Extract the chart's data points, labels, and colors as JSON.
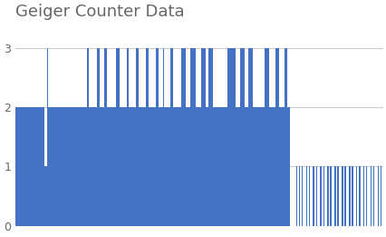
{
  "title": "Geiger Counter Data",
  "title_fontsize": 13,
  "title_color": "#666666",
  "bar_color": "#4472C4",
  "background_color": "#ffffff",
  "ylim": [
    0,
    3.4
  ],
  "yticks": [
    0,
    1,
    2,
    3
  ],
  "grid_color": "#cccccc",
  "pattern": [
    2,
    2,
    2,
    2,
    2,
    2,
    2,
    2,
    2,
    2,
    2,
    2,
    2,
    2,
    2,
    2,
    2,
    2,
    2,
    2,
    1,
    1,
    3,
    2,
    2,
    2,
    2,
    2,
    2,
    2,
    2,
    2,
    2,
    2,
    2,
    2,
    2,
    2,
    2,
    2,
    2,
    2,
    2,
    2,
    2,
    2,
    2,
    2,
    2,
    2,
    3,
    2,
    2,
    2,
    2,
    2,
    2,
    3,
    3,
    2,
    2,
    2,
    3,
    3,
    2,
    2,
    2,
    2,
    2,
    2,
    3,
    3,
    3,
    2,
    2,
    2,
    2,
    2,
    3,
    2,
    2,
    2,
    2,
    2,
    3,
    3,
    2,
    2,
    2,
    2,
    2,
    3,
    3,
    2,
    2,
    2,
    2,
    2,
    3,
    3,
    2,
    2,
    2,
    3,
    2,
    2,
    2,
    2,
    3,
    3,
    2,
    2,
    2,
    2,
    2,
    2,
    3,
    3,
    3,
    2,
    2,
    2,
    3,
    3,
    3,
    3,
    2,
    2,
    2,
    2,
    3,
    3,
    3,
    2,
    2,
    3,
    3,
    3,
    2,
    2,
    2,
    2,
    2,
    2,
    2,
    2,
    2,
    2,
    3,
    3,
    3,
    3,
    3,
    3,
    2,
    2,
    2,
    3,
    3,
    3,
    2,
    2,
    2,
    3,
    3,
    3,
    2,
    2,
    2,
    2,
    2,
    2,
    2,
    2,
    3,
    3,
    3,
    2,
    2,
    2,
    2,
    2,
    3,
    3,
    2,
    2,
    2,
    2,
    3,
    3,
    2,
    2,
    0,
    0,
    0,
    0,
    1,
    0,
    1,
    0,
    1,
    0,
    0,
    1,
    0,
    1,
    0,
    0,
    1,
    0,
    1,
    0,
    0,
    1,
    0,
    1,
    0,
    0,
    1,
    0,
    1,
    0,
    0,
    1,
    0,
    1,
    0,
    0,
    1,
    0,
    1,
    0,
    0,
    1,
    0,
    1,
    0,
    0,
    1,
    0,
    1,
    0,
    0,
    1,
    0,
    1,
    0,
    0,
    1,
    0,
    1,
    0,
    0,
    1,
    0,
    1,
    0
  ]
}
